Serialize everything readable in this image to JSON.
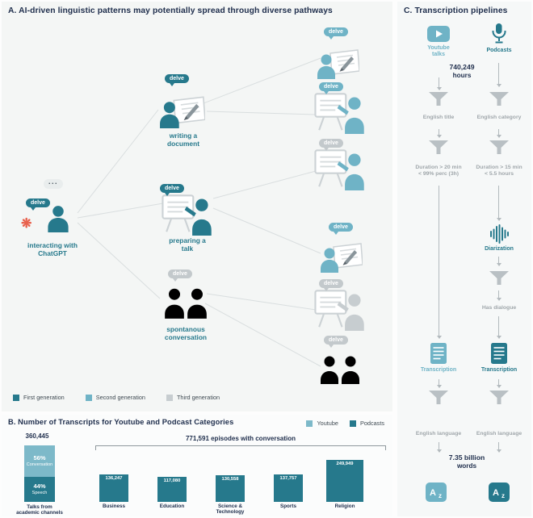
{
  "panel_a": {
    "title": "A. AI-driven linguistic patterns may potentially spread through diverse pathways",
    "delve": "delve",
    "dots": "...",
    "nodes": {
      "chatgpt": "interacting with ChatGPT",
      "writing": "writing a document",
      "talk": "preparing a talk",
      "conversation": "spontanous conversation"
    },
    "legend": [
      {
        "label": "First generation",
        "color": "#26798c"
      },
      {
        "label": "Second generation",
        "color": "#6fb3c6"
      },
      {
        "label": "Third generation",
        "color": "#c7cdd0"
      }
    ]
  },
  "panel_b": {
    "title": "B. Number of Transcripts for Youtube and Podcast Categories",
    "legend": [
      "Youtube",
      "Podcasts"
    ]
  },
  "chart_data": {
    "type": "bar",
    "title": "Number of Transcripts for Youtube and Podcast Categories",
    "colors": {
      "youtube": "#7db9c9",
      "podcasts": "#26798c"
    },
    "youtube_bar": {
      "total": "360,445",
      "total_value": 360445,
      "segments": [
        {
          "pct": "56%",
          "label": "Conversation",
          "value_pct": 56
        },
        {
          "pct": "44%",
          "label": "Speech",
          "value_pct": 44
        }
      ],
      "caption_lines": [
        "Talks from",
        "academic channels"
      ]
    },
    "bracket_label": "771,591 episodes with conversation",
    "categories": [
      "Business",
      "Education",
      "Science & Technology",
      "Sports",
      "Religion"
    ],
    "values": [
      136247,
      117080,
      130558,
      137757,
      249949
    ],
    "value_labels": [
      "136,247",
      "117,080",
      "130,558",
      "137,757",
      "249,949"
    ],
    "legend": [
      "Youtube",
      "Podcasts"
    ]
  },
  "panel_c": {
    "title": "C. Transcription pipelines",
    "youtube_label": "Youtube talks",
    "podcasts_label": "Podcasts",
    "hours_value": "740,249",
    "hours_unit": "hours",
    "left": {
      "filter1": "English title",
      "duration_line1": "Duration > 20 min",
      "duration_line2": "< 99% perc (3h)",
      "transcription": "Transcription",
      "language": "English language"
    },
    "right": {
      "filter1": "English category",
      "duration_line1": "Duration > 15 min",
      "duration_line2": "< 5.5 hours",
      "diarization": "Diarization",
      "dialogue": "Has dialogue",
      "transcription": "Transcription",
      "language": "English language"
    },
    "words_value": "7.35 billion",
    "words_unit": "words",
    "az_a": "A",
    "az_z": "z"
  }
}
